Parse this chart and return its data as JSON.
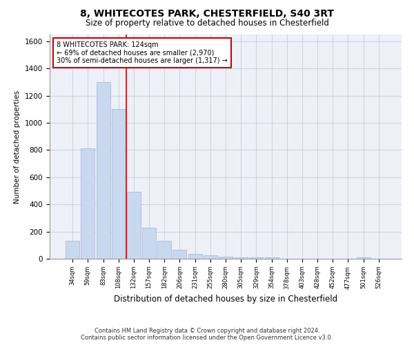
{
  "title_line1": "8, WHITECOTES PARK, CHESTERFIELD, S40 3RT",
  "title_line2": "Size of property relative to detached houses in Chesterfield",
  "xlabel": "Distribution of detached houses by size in Chesterfield",
  "ylabel": "Number of detached properties",
  "categories": [
    "34sqm",
    "59sqm",
    "83sqm",
    "108sqm",
    "132sqm",
    "157sqm",
    "182sqm",
    "206sqm",
    "231sqm",
    "255sqm",
    "280sqm",
    "305sqm",
    "329sqm",
    "354sqm",
    "378sqm",
    "403sqm",
    "428sqm",
    "452sqm",
    "477sqm",
    "501sqm",
    "526sqm"
  ],
  "values": [
    130,
    810,
    1300,
    1100,
    490,
    230,
    130,
    65,
    35,
    25,
    15,
    10,
    10,
    10,
    0,
    0,
    0,
    0,
    0,
    10,
    0
  ],
  "bar_color": "#c8d8ee",
  "bar_edge_color": "#a8bcd8",
  "vline_color": "#cc0000",
  "annotation_text": "8 WHITECOTES PARK: 124sqm\n← 69% of detached houses are smaller (2,970)\n30% of semi-detached houses are larger (1,317) →",
  "annotation_box_color": "white",
  "annotation_box_edge_color": "#cc0000",
  "ylim": [
    0,
    1650
  ],
  "yticks": [
    0,
    200,
    400,
    600,
    800,
    1000,
    1200,
    1400,
    1600
  ],
  "footer_line1": "Contains HM Land Registry data © Crown copyright and database right 2024.",
  "footer_line2": "Contains public sector information licensed under the Open Government Licence v3.0.",
  "bg_color": "#ffffff",
  "plot_bg_color": "#eef0f8",
  "grid_color": "#c8ccd8"
}
